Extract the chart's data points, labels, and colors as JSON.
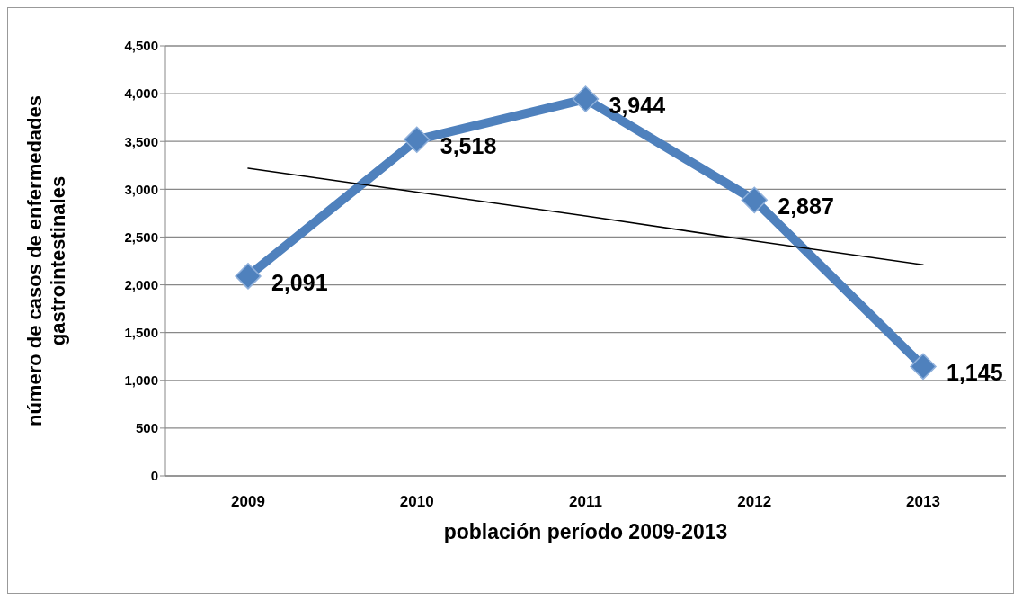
{
  "chart_data": {
    "type": "line",
    "xlabel": "población período 2009-2013",
    "ylabel": "número de casos de enfermedades\ngastrointestinales",
    "categories": [
      "2009",
      "2010",
      "2011",
      "2012",
      "2013"
    ],
    "series": [
      {
        "color": "#4f81bd",
        "values": [
          2091,
          3518,
          3944,
          2887,
          1145
        ],
        "value_labels": [
          "2,091",
          "3,518",
          "3,944",
          "2,887",
          "1,145"
        ],
        "marker": "diamond"
      },
      {
        "type": "line",
        "color": "#000000",
        "values": [
          3220,
          2970,
          2720,
          2460,
          2210
        ],
        "marker": "none"
      }
    ],
    "ylim": [
      0,
      4500
    ],
    "yticks": [
      {
        "value": 0,
        "label": "0"
      },
      {
        "value": 500,
        "label": "500"
      },
      {
        "value": 1000,
        "label": "1,000"
      },
      {
        "value": 1500,
        "label": "1,500"
      },
      {
        "value": 2000,
        "label": "2,000"
      },
      {
        "value": 2500,
        "label": "2,500"
      },
      {
        "value": 3000,
        "label": "3,000"
      },
      {
        "value": 3500,
        "label": "3,500"
      },
      {
        "value": 4000,
        "label": "4,000"
      },
      {
        "value": 4500,
        "label": "4,500"
      }
    ],
    "grid": "y",
    "line_style": "solid"
  }
}
